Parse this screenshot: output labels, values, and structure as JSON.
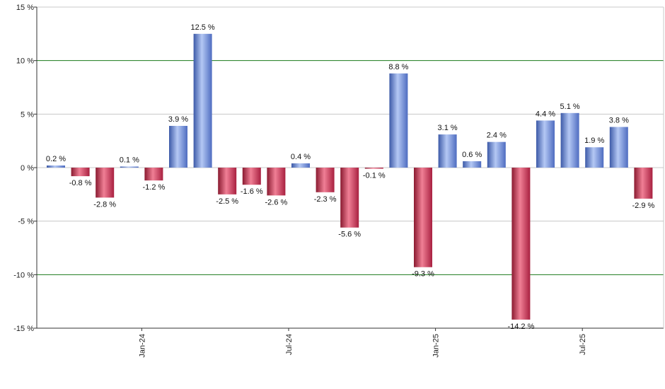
{
  "chart_data": {
    "type": "bar",
    "title": "",
    "xlabel": "",
    "ylabel": "",
    "ylim": [
      -15,
      15
    ],
    "y_ticks": [
      15,
      10,
      5,
      0,
      -5,
      -10,
      -15
    ],
    "y_tick_labels": [
      "15 %",
      "10 %",
      "5 %",
      "0 %",
      "-5 %",
      "-10 %",
      "-15 %"
    ],
    "x_tick_labels": [
      {
        "label": "Jan-24",
        "index": 4
      },
      {
        "label": "Jul-24",
        "index": 10
      },
      {
        "label": "Jan-25",
        "index": 16
      },
      {
        "label": "Jul-25",
        "index": 22
      }
    ],
    "values": [
      0.2,
      -0.8,
      -2.8,
      0.1,
      -1.2,
      3.9,
      12.5,
      -2.5,
      -1.6,
      -2.6,
      0.4,
      -2.3,
      -5.6,
      -0.1,
      8.8,
      -9.3,
      3.1,
      0.6,
      2.4,
      -14.2,
      4.4,
      5.1,
      1.9,
      3.8,
      -2.9
    ],
    "value_labels": [
      "0.2 %",
      "-0.8 %",
      "-2.8 %",
      "0.1 %",
      "-1.2 %",
      "3.9 %",
      "12.5 %",
      "-2.5 %",
      "-1.6 %",
      "-2.6 %",
      "0.4 %",
      "-2.3 %",
      "-5.6 %",
      "-0.1 %",
      "8.8 %",
      "-9.3 %",
      "3.1 %",
      "0.6 %",
      "2.4 %",
      "-14.2 %",
      "4.4 %",
      "5.1 %",
      "1.9 %",
      "3.8 %",
      "-2.9 %"
    ],
    "highlight_gridlines": [
      10,
      -10
    ],
    "grid": true,
    "colors": {
      "positive": "#6f8fd8",
      "positive_light": "#b4c8f4",
      "positive_dark": "#3d5aa8",
      "negative": "#cc3350",
      "negative_light": "#f07f95",
      "negative_dark": "#8a1a30",
      "gridline": "#c8c8c8",
      "highlight_gridline": "#1a7a1a",
      "axis": "#333333"
    }
  }
}
